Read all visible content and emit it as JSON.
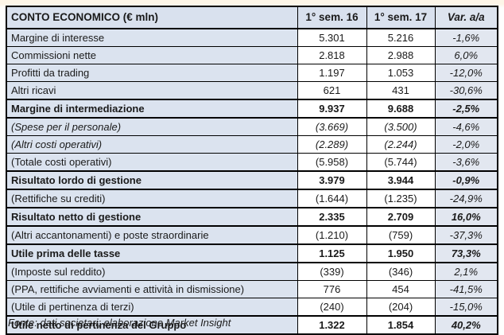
{
  "table": {
    "header": {
      "label": "CONTO ECONOMICO (€ mln)",
      "col_sem16": "1° sem. 16",
      "col_sem17": "1° sem. 17",
      "col_var": "Var. a/a"
    },
    "rows": [
      {
        "label": "Margine di interesse",
        "sem16": "5.301",
        "sem17": "5.216",
        "var": "-1,6%",
        "style": "normal"
      },
      {
        "label": "Commissioni nette",
        "sem16": "2.818",
        "sem17": "2.988",
        "var": "6,0%",
        "style": "normal"
      },
      {
        "label": "Profitti da trading",
        "sem16": "1.197",
        "sem17": "1.053",
        "var": "-12,0%",
        "style": "normal"
      },
      {
        "label": "Altri ricavi",
        "sem16": "621",
        "sem17": "431",
        "var": "-30,6%",
        "style": "normal"
      },
      {
        "label": "Margine di intermediazione",
        "sem16": "9.937",
        "sem17": "9.688",
        "var": "-2,5%",
        "style": "bold"
      },
      {
        "label": "(Spese per il personale)",
        "sem16": "(3.669)",
        "sem17": "(3.500)",
        "var": "-4,6%",
        "style": "italic"
      },
      {
        "label": "(Altri costi operativi)",
        "sem16": "(2.289)",
        "sem17": "(2.244)",
        "var": "-2,0%",
        "style": "italic"
      },
      {
        "label": "(Totale costi operativi)",
        "sem16": "(5.958)",
        "sem17": "(5.744)",
        "var": "-3,6%",
        "style": "normal"
      },
      {
        "label": "Risultato lordo di gestione",
        "sem16": "3.979",
        "sem17": "3.944",
        "var": "-0,9%",
        "style": "bold"
      },
      {
        "label": "(Rettifiche su crediti)",
        "sem16": "(1.644)",
        "sem17": "(1.235)",
        "var": "-24,9%",
        "style": "normal"
      },
      {
        "label": "Risultato netto di gestione",
        "sem16": "2.335",
        "sem17": "2.709",
        "var": "16,0%",
        "style": "bold"
      },
      {
        "label": "(Altri accantonamenti) e poste straordinarie",
        "sem16": "(1.210)",
        "sem17": "(759)",
        "var": "-37,3%",
        "style": "normal"
      },
      {
        "label": "Utile prima delle tasse",
        "sem16": "1.125",
        "sem17": "1.950",
        "var": "73,3%",
        "style": "bold"
      },
      {
        "label": "(Imposte sul reddito)",
        "sem16": "(339)",
        "sem17": "(346)",
        "var": "2,1%",
        "style": "normal"
      },
      {
        "label": "(PPA, rettifiche avviamenti e attività in dismissione)",
        "sem16": "776",
        "sem17": "454",
        "var": "-41,5%",
        "style": "normal"
      },
      {
        "label": "(Utile di pertinenza di terzi)",
        "sem16": "(240)",
        "sem17": "(204)",
        "var": "-15,0%",
        "style": "normal"
      },
      {
        "label": "Utile netto di pertinenza del Gruppo",
        "sem16": "1.322",
        "sem17": "1.854",
        "var": "40,2%",
        "style": "bold"
      }
    ]
  },
  "footer": {
    "source_note": "Fonte: dati societari; elaborazione Market Insight"
  },
  "colors": {
    "cell_tint": "#dbe3ef",
    "var_tint": "#e2e7f0",
    "header_tint": "#d9e1ee",
    "border": "#000000",
    "text": "#1a1a1a"
  }
}
